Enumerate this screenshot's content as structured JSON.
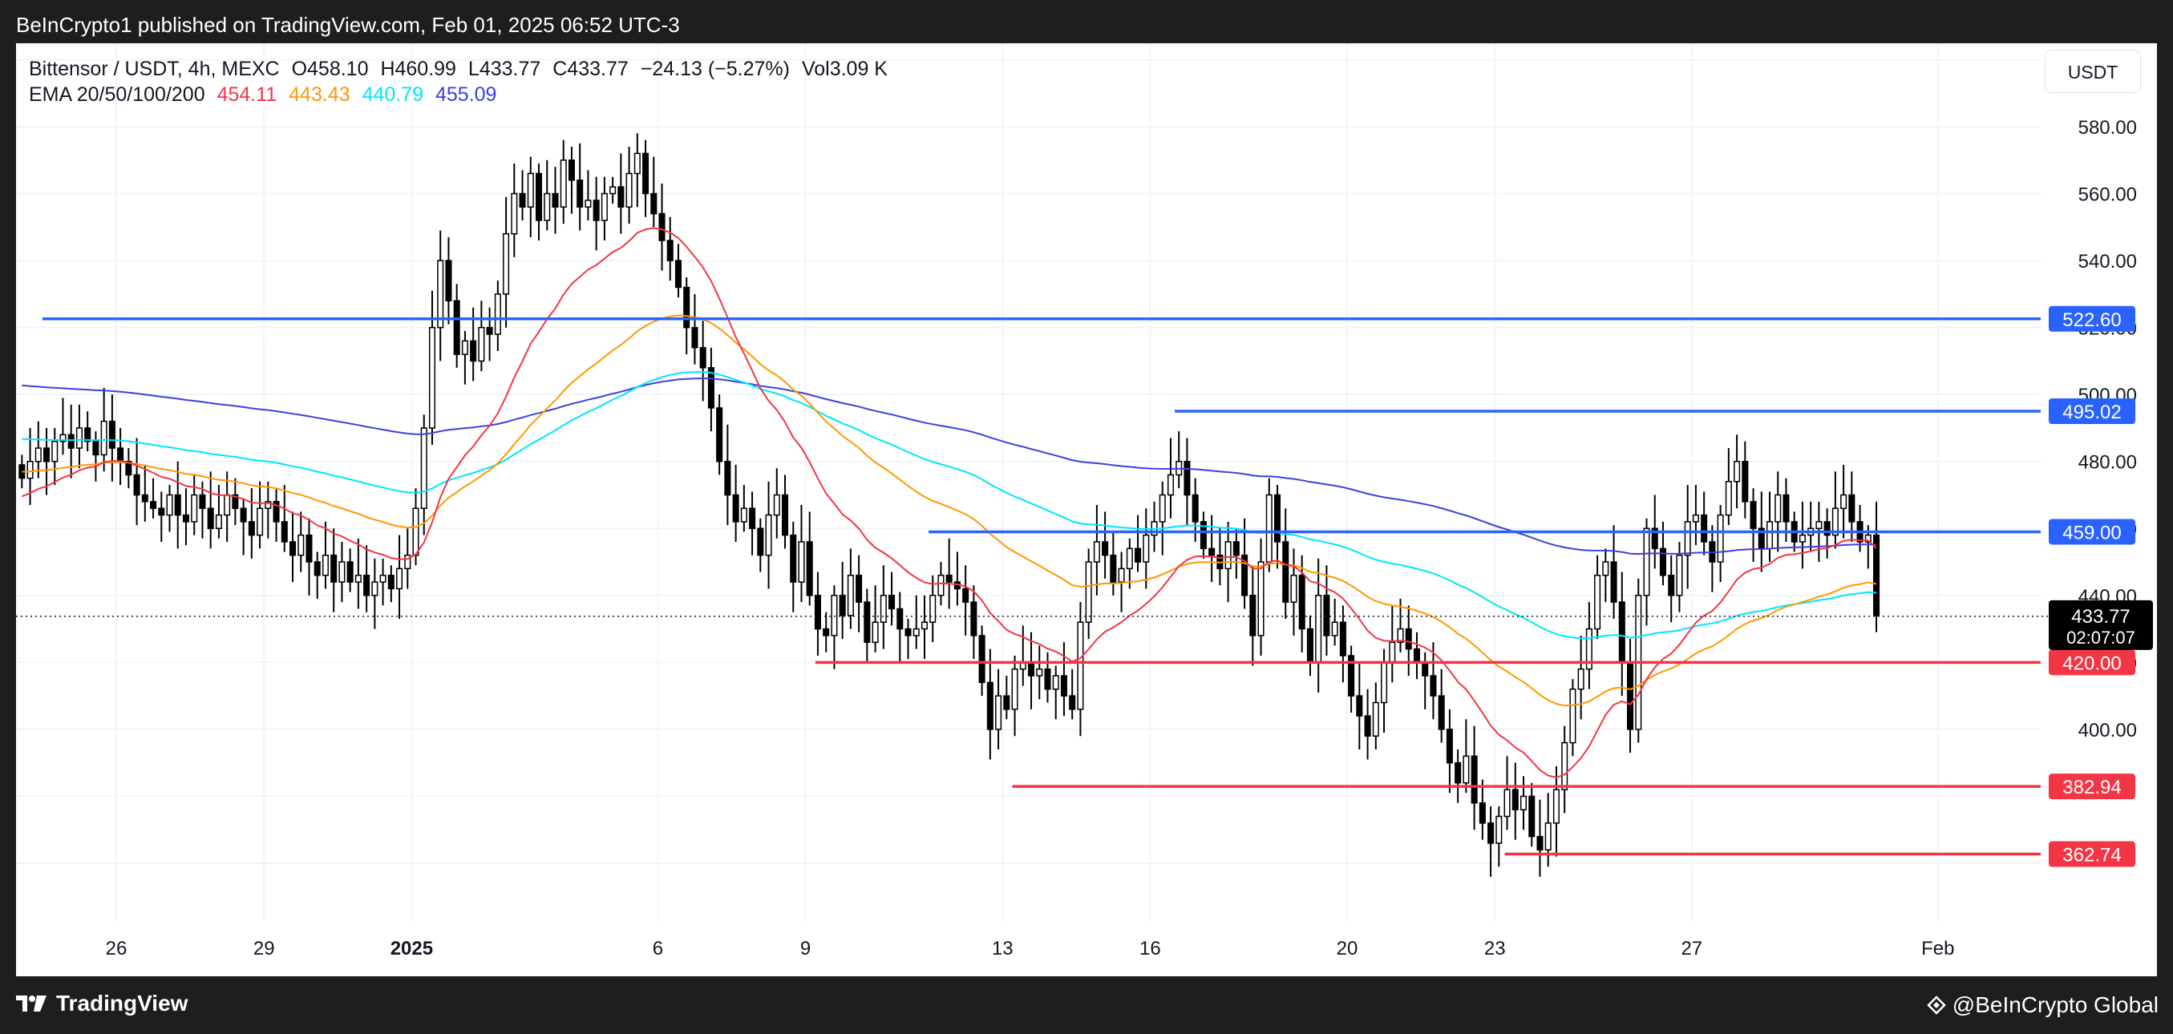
{
  "header": {
    "publisher_line": "BeInCrypto1 published on TradingView.com, Feb 01, 2025 06:52 UTC-3"
  },
  "legend": {
    "symbol": "Bittensor / USDT, 4h, MEXC",
    "open": "O458.10",
    "high": "H460.99",
    "low": "L433.77",
    "close": "C433.77",
    "change": "−24.13 (−5.27%)",
    "volume": "Vol3.09 K",
    "ema_label": "EMA 20/50/100/200",
    "ema20": "454.11",
    "ema50": "443.43",
    "ema100": "440.79",
    "ema200": "455.09"
  },
  "currency_button": "USDT",
  "footer": {
    "brand": "TradingView",
    "attribution": "@BeInCrypto Global"
  },
  "colors": {
    "up_candle": "#ffffff",
    "down_candle": "#000000",
    "wick": "#000000",
    "ema20": "#f23645",
    "ema50": "#ff9800",
    "ema100": "#00e5ff",
    "ema200": "#3f3fe0",
    "resistance": "#2962ff",
    "support": "#f23645",
    "grid": "#f0f3fa",
    "axis_text": "#131722"
  },
  "chart_data": {
    "type": "candlestick",
    "title": "Bittensor / USDT, 4h, MEXC",
    "ylim": [
      350,
      600
    ],
    "y_ticks": [
      400,
      420,
      440,
      460,
      480,
      500,
      520,
      540,
      560,
      580
    ],
    "y_tick_labels": [
      "400.00",
      "420.00",
      "440.00",
      "460.00",
      "480.00",
      "500.00",
      "520.00",
      "540.00",
      "560.00",
      "580.00"
    ],
    "x_ticks": [
      {
        "label": "26",
        "day": 0
      },
      {
        "label": "29",
        "day": 3
      },
      {
        "label": "2025",
        "day": 6,
        "bold": true
      },
      {
        "label": "6",
        "day": 11
      },
      {
        "label": "9",
        "day": 14
      },
      {
        "label": "13",
        "day": 18
      },
      {
        "label": "16",
        "day": 21
      },
      {
        "label": "20",
        "day": 25
      },
      {
        "label": "23",
        "day": 28
      },
      {
        "label": "27",
        "day": 32
      },
      {
        "label": "Feb",
        "day": 37
      }
    ],
    "candles_per_day": 6,
    "start_day": -2,
    "closes": [
      475,
      480,
      484,
      480,
      486,
      488,
      484,
      490,
      486,
      482,
      492,
      484,
      480,
      476,
      470,
      468,
      466,
      464,
      470,
      464,
      462,
      470,
      466,
      460,
      464,
      470,
      466,
      462,
      458,
      466,
      468,
      462,
      456,
      452,
      458,
      450,
      446,
      452,
      444,
      450,
      444,
      446,
      440,
      444,
      446,
      442,
      448,
      452,
      466,
      490,
      520,
      540,
      528,
      512,
      516,
      510,
      520,
      518,
      530,
      548,
      560,
      556,
      566,
      552,
      560,
      556,
      570,
      564,
      556,
      558,
      552,
      560,
      562,
      556,
      566,
      572,
      560,
      554,
      546,
      540,
      532,
      520,
      514,
      508,
      496,
      480,
      470,
      462,
      466,
      460,
      452,
      464,
      470,
      458,
      444,
      456,
      440,
      430,
      428,
      440,
      434,
      446,
      438,
      426,
      432,
      440,
      436,
      430,
      428,
      430,
      432,
      440,
      446,
      444,
      442,
      438,
      428,
      414,
      400,
      410,
      406,
      418,
      420,
      416,
      418,
      412,
      416,
      410,
      406,
      432,
      450,
      456,
      452,
      444,
      448,
      454,
      450,
      458,
      462,
      470,
      476,
      480,
      470,
      462,
      454,
      452,
      448,
      456,
      452,
      440,
      428,
      450,
      470,
      456,
      438,
      446,
      430,
      420,
      440,
      428,
      432,
      422,
      410,
      404,
      398,
      408,
      420,
      426,
      430,
      424,
      420,
      416,
      410,
      400,
      390,
      384,
      392,
      378,
      372,
      366,
      374,
      382,
      376,
      380,
      368,
      364,
      372,
      382,
      396,
      412,
      418,
      430,
      446,
      450,
      438,
      420,
      400,
      440,
      460,
      454,
      446,
      440,
      452,
      462,
      464,
      456,
      450,
      464,
      474,
      480,
      468,
      460,
      454,
      462,
      470,
      462,
      456,
      458,
      460,
      462,
      458,
      466,
      470,
      462,
      456,
      458,
      434
    ],
    "ema20_final": 454.11,
    "ema50_final": 443.43,
    "ema100_final": 440.79,
    "ema200_final": 455.09,
    "resistance_levels": [
      {
        "value": 522.6,
        "label": "522.60",
        "from_day": -1.5
      },
      {
        "value": 495.02,
        "label": "495.02",
        "from_day": 21.5
      },
      {
        "value": 459.0,
        "label": "459.00",
        "from_day": 16.5
      }
    ],
    "support_levels": [
      {
        "value": 420.0,
        "label": "420.00",
        "from_day": 14.2
      },
      {
        "value": 382.94,
        "label": "382.94",
        "from_day": 18.2
      },
      {
        "value": 362.74,
        "label": "362.74",
        "from_day": 28.2
      }
    ],
    "last_price": {
      "value": 433.77,
      "label": "433.77",
      "countdown": "02:07:07"
    }
  }
}
